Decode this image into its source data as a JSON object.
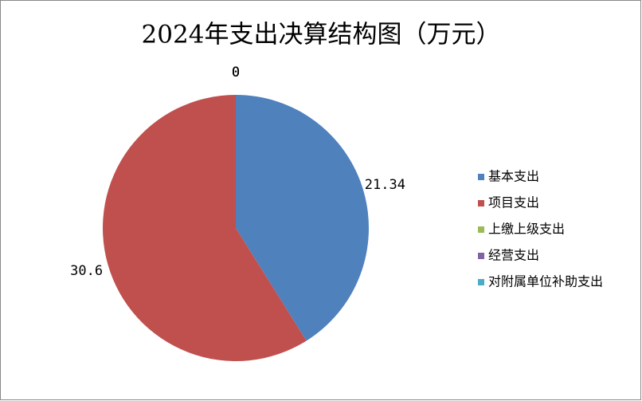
{
  "chart_data": {
    "type": "pie",
    "title": "2024年支出决算结构图（万元）",
    "categories": [
      "基本支出",
      "项目支出",
      "上缴上级支出",
      "经营支出",
      "对附属单位补助支出"
    ],
    "values": [
      21.34,
      30.6,
      0,
      0,
      0
    ],
    "colors": [
      "#4f81bd",
      "#c0504d",
      "#9bbb59",
      "#8064a2",
      "#4bacc6"
    ],
    "legend": "right"
  }
}
